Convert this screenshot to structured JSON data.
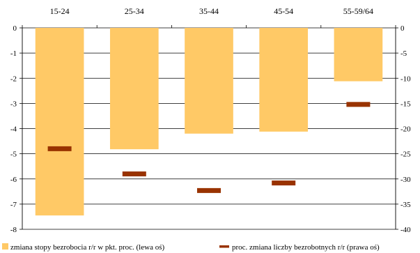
{
  "chart_data": {
    "type": "bar",
    "categories": [
      "15-24",
      "25-34",
      "35-44",
      "45-54",
      "55-59/64"
    ],
    "series": [
      {
        "name": "zmiana stopy bezrobocia r/r w pkt. proc. (lewa oś)",
        "type": "bar",
        "axis": "left",
        "color": "#FFC966",
        "values": [
          -7.45,
          -4.82,
          -4.2,
          -4.12,
          -2.12
        ]
      },
      {
        "name": "proc. zmiana liczby bezrobotnych r/r (prawa oś)",
        "type": "marker",
        "axis": "right",
        "color": "#993300",
        "values": [
          -24.0,
          -29.0,
          -32.3,
          -30.8,
          -15.2
        ]
      }
    ],
    "left_axis": {
      "ylim": [
        -8,
        0
      ],
      "ticks": [
        "0",
        "-1",
        "-2",
        "-3",
        "-4",
        "-5",
        "-6",
        "-7",
        "-8"
      ]
    },
    "right_axis": {
      "ylim": [
        -40,
        0
      ],
      "ticks": [
        "0",
        "-5",
        "-10",
        "-15",
        "-20",
        "-25",
        "-30",
        "-35",
        "-40"
      ]
    },
    "categories_position": "top",
    "grid": true,
    "legend_position": "bottom"
  }
}
